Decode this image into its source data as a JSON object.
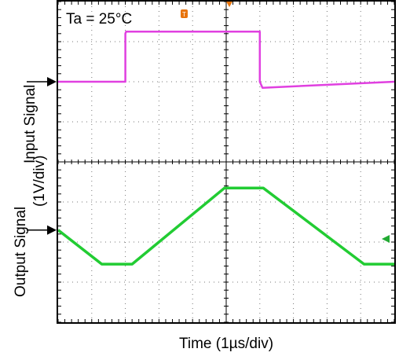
{
  "chart_data": {
    "type": "line",
    "annotation": "Ta = 25°C",
    "xlabel": "Time (1µs/div)",
    "ylabel_input": "Input Signal",
    "ylabel_output": "Output Signal",
    "ylabel_scale": "(1V/div)",
    "x_divisions": 10,
    "y_divisions": 8,
    "grid": true,
    "xlim": [
      0,
      10
    ],
    "ylim": [
      0,
      8
    ],
    "input_marker_level_div": 6.0,
    "output_marker_level_div": 2.3,
    "series": [
      {
        "name": "Input Signal",
        "color": "#e040e0",
        "x": [
          0.0,
          2.0,
          2.0,
          2.02,
          6.0,
          6.0,
          6.08,
          10.0
        ],
        "y": [
          6.0,
          6.0,
          7.2,
          7.25,
          7.25,
          6.0,
          5.85,
          6.0
        ]
      },
      {
        "name": "Output Signal",
        "color": "#22cc33",
        "x": [
          0.0,
          1.3,
          2.2,
          4.95,
          6.1,
          9.1,
          10.0
        ],
        "y": [
          2.3,
          1.45,
          1.45,
          3.35,
          3.35,
          1.45,
          1.45
        ]
      }
    ]
  }
}
